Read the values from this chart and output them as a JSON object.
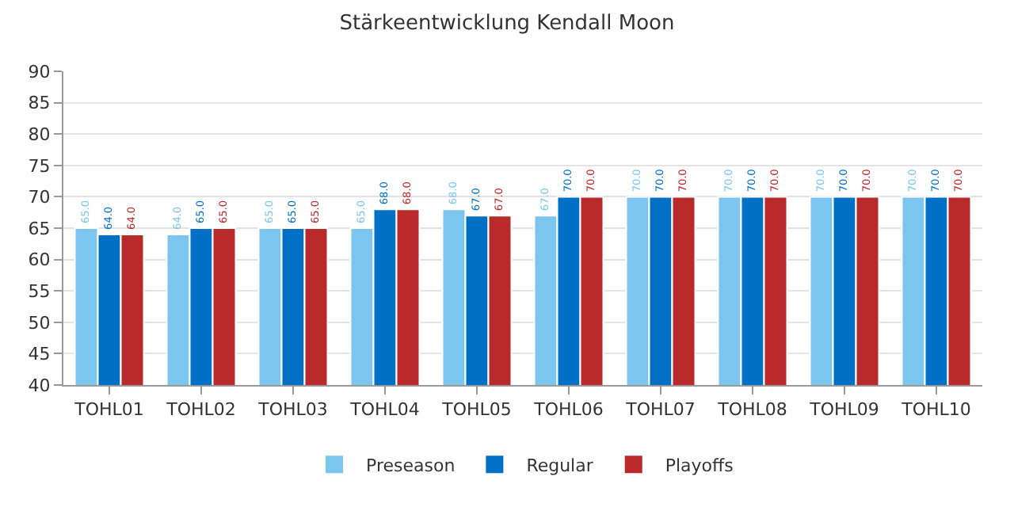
{
  "chart_data": {
    "type": "bar",
    "title": "Stärkeentwicklung Kendall Moon",
    "categories": [
      "TOHL01",
      "TOHL02",
      "TOHL03",
      "TOHL04",
      "TOHL05",
      "TOHL06",
      "TOHL07",
      "TOHL08",
      "TOHL09",
      "TOHL10"
    ],
    "series": [
      {
        "name": "Preseason",
        "color": "#7cc5ef",
        "values": [
          65,
          64,
          65,
          65,
          68,
          67,
          70,
          70,
          70,
          70
        ],
        "value_labels": [
          "65.0",
          "64.0",
          "65.0",
          "65.0",
          "68.0",
          "67.0",
          "70.0",
          "70.0",
          "70.0",
          "70.0"
        ]
      },
      {
        "name": "Regular",
        "color": "#0070c6",
        "values": [
          64,
          65,
          65,
          68,
          67,
          70,
          70,
          70,
          70,
          70
        ],
        "value_labels": [
          "64.0",
          "65.0",
          "65.0",
          "68.0",
          "67.0",
          "70.0",
          "70.0",
          "70.0",
          "70.0",
          "70.0"
        ]
      },
      {
        "name": "Playoffs",
        "color": "#b92a2a",
        "values": [
          64,
          65,
          65,
          68,
          67,
          70,
          70,
          70,
          70,
          70
        ],
        "value_labels": [
          "64.0",
          "65.0",
          "65.0",
          "68.0",
          "67.0",
          "70.0",
          "70.0",
          "70.0",
          "70.0",
          "70.0"
        ]
      }
    ],
    "ylim": [
      40,
      90
    ],
    "yticks": [
      40,
      45,
      50,
      55,
      60,
      65,
      70,
      75,
      80,
      85,
      90
    ],
    "grid": "y",
    "legend": "bottom"
  }
}
